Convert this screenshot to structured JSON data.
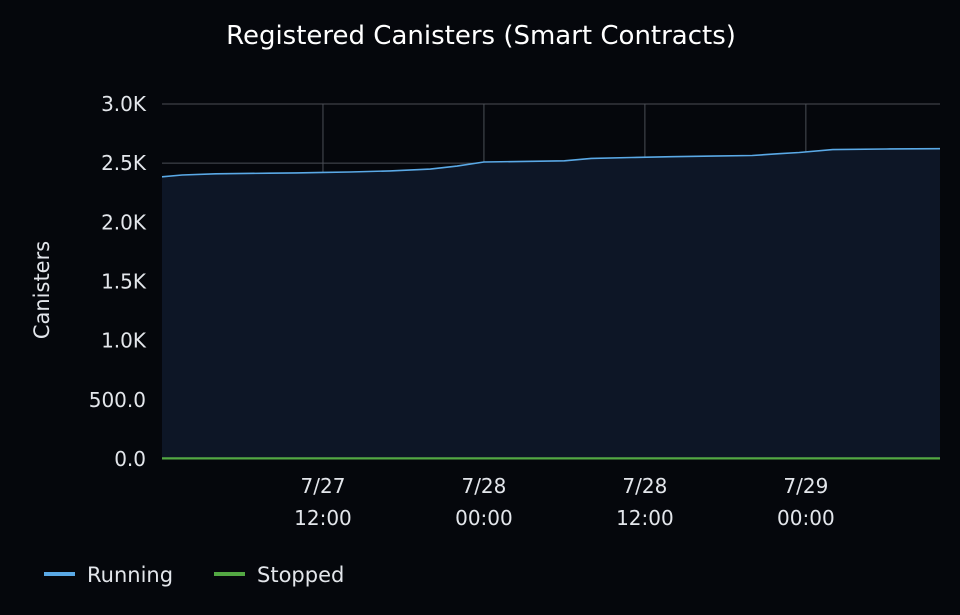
{
  "chart_data": {
    "type": "area",
    "title": "Registered Canisters (Smart Contracts)",
    "ylabel": "Canisters",
    "xlabel": "",
    "ylim": [
      0,
      3000
    ],
    "y_ticks": [
      "0.0",
      "500.0",
      "1.0K",
      "1.5K",
      "2.0K",
      "2.5K",
      "3.0K"
    ],
    "x_ticks": [
      {
        "line1": "7/27",
        "line2": "12:00",
        "t": 12
      },
      {
        "line1": "7/28",
        "line2": "00:00",
        "t": 24
      },
      {
        "line1": "7/28",
        "line2": "12:00",
        "t": 36
      },
      {
        "line1": "7/29",
        "line2": "00:00",
        "t": 48
      }
    ],
    "grid": true,
    "legend_position": "bottom-left",
    "colors": {
      "running": "#5aa9e6",
      "stopped": "#53a843",
      "fill": "#0d1626",
      "background": "#05070c"
    },
    "series": [
      {
        "name": "Running",
        "x": [
          0,
          1.5,
          4,
          8,
          10,
          12,
          14,
          17,
          20,
          22,
          24,
          27,
          30,
          32,
          35,
          38,
          41,
          44,
          46,
          47.5,
          50,
          54,
          58
        ],
        "values": [
          2385,
          2400,
          2410,
          2415,
          2418,
          2422,
          2425,
          2435,
          2450,
          2475,
          2510,
          2515,
          2520,
          2540,
          2548,
          2555,
          2560,
          2565,
          2580,
          2590,
          2615,
          2620,
          2622
        ]
      },
      {
        "name": "Stopped",
        "x": [
          0,
          58
        ],
        "values": [
          5,
          5
        ]
      }
    ]
  }
}
